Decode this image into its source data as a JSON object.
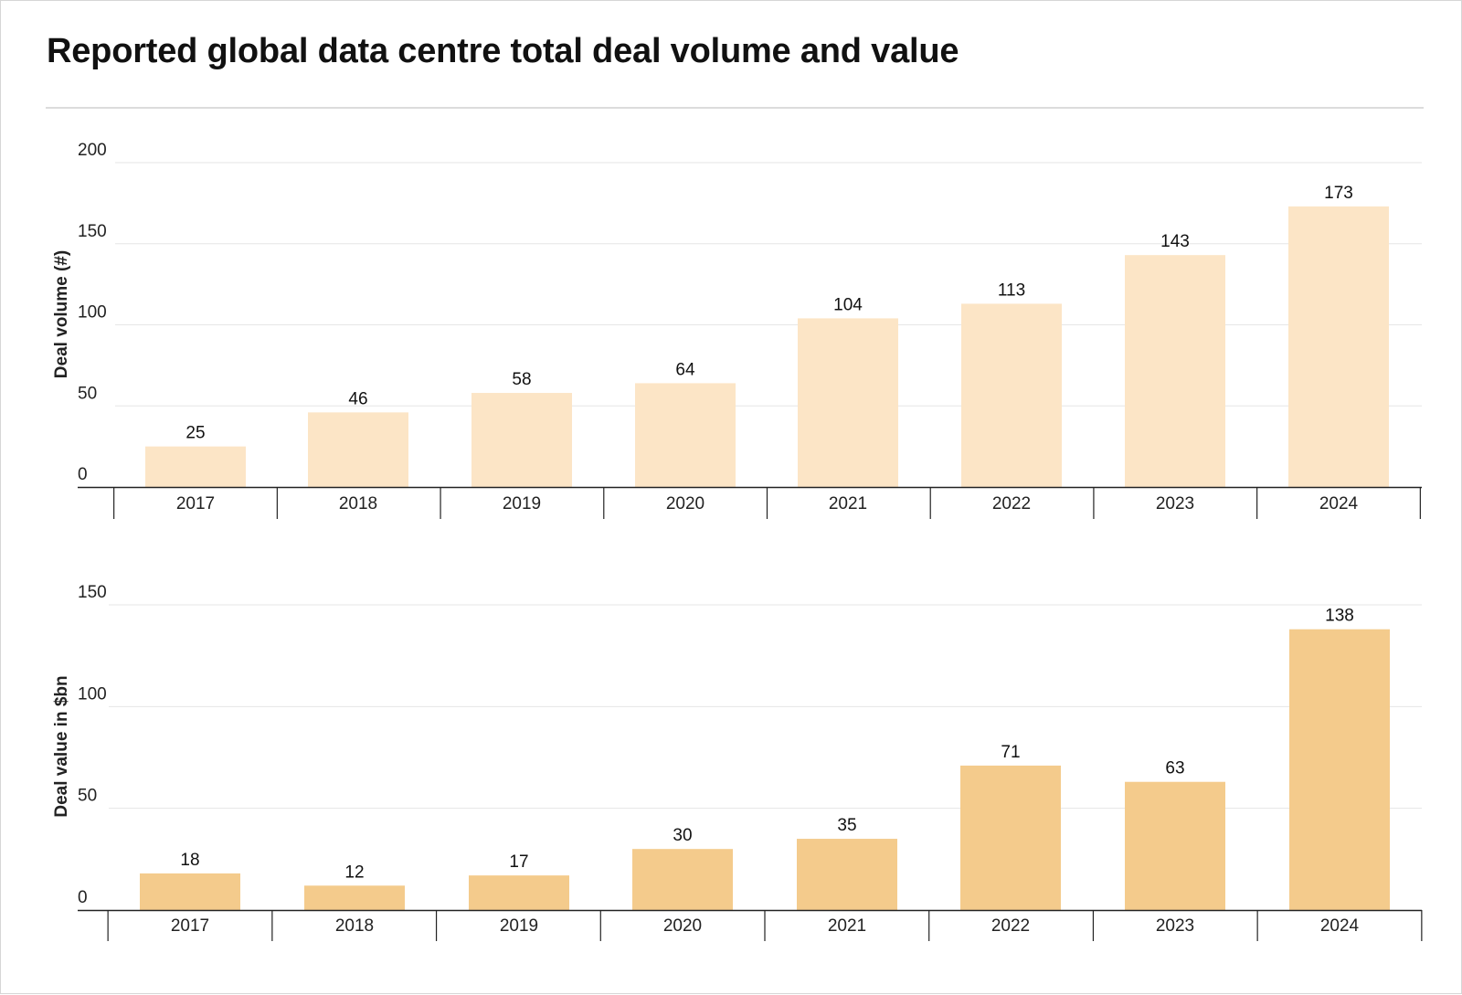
{
  "title": "Reported global data centre total deal volume and value",
  "colors": {
    "volume_bar": "#fce5c6",
    "value_bar": "#f4cb8c",
    "gridline": "#e6e6e6",
    "axis": "#222222"
  },
  "chart_data": [
    {
      "type": "bar",
      "title": "",
      "xlabel": "",
      "ylabel": "Deal volume (#)",
      "ylim": [
        0,
        200
      ],
      "yticks": [
        0,
        50,
        100,
        150,
        200
      ],
      "grid": true,
      "categories": [
        "2017",
        "2018",
        "2019",
        "2020",
        "2021",
        "2022",
        "2023",
        "2024"
      ],
      "values": [
        25,
        46,
        58,
        64,
        104,
        113,
        143,
        173
      ]
    },
    {
      "type": "bar",
      "title": "",
      "xlabel": "",
      "ylabel": "Deal value in $bn",
      "ylim": [
        0,
        150
      ],
      "yticks": [
        0,
        50,
        100,
        150
      ],
      "grid": true,
      "categories": [
        "2017",
        "2018",
        "2019",
        "2020",
        "2021",
        "2022",
        "2023",
        "2024"
      ],
      "values": [
        18,
        12,
        17,
        30,
        35,
        71,
        63,
        138
      ]
    }
  ]
}
